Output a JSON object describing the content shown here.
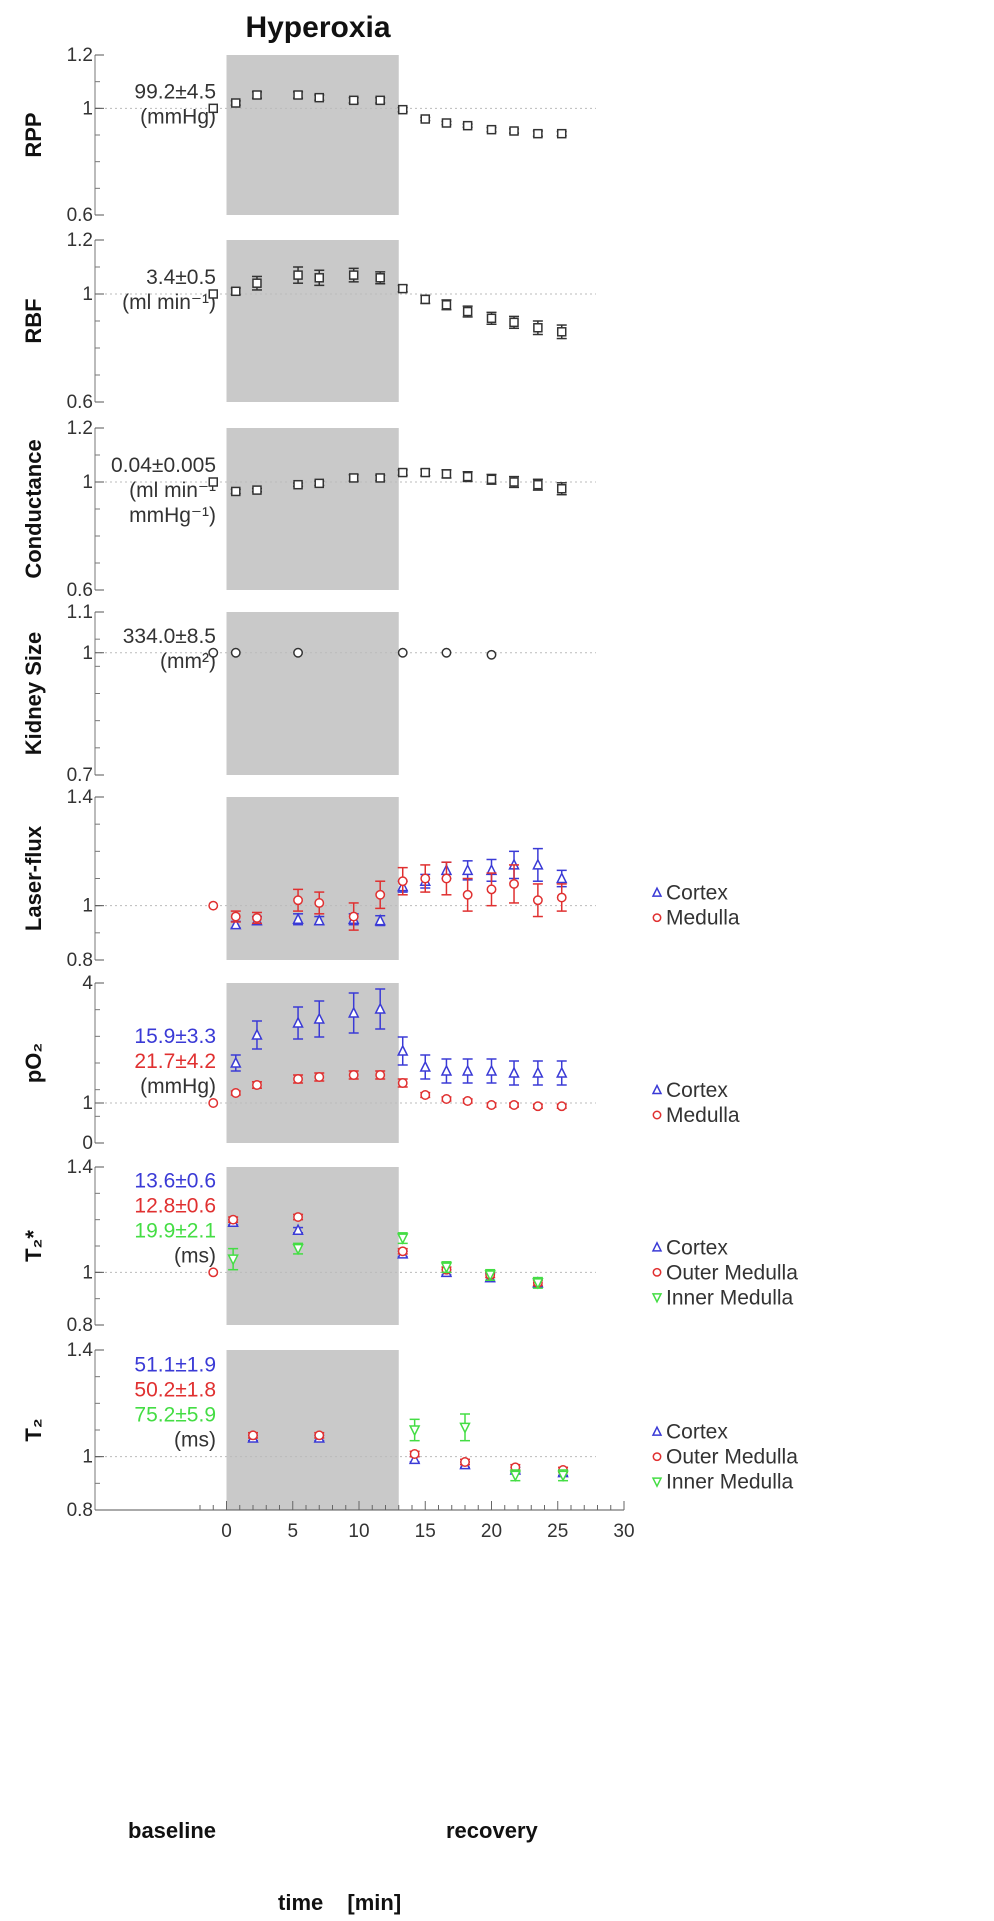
{
  "chart_data": {
    "type": "scatter",
    "title": "Hyperoxia",
    "xlabel": "time",
    "xunit": "[min]",
    "xlim": [
      -2,
      30
    ],
    "xticks": [
      "0",
      "5",
      "10",
      "15",
      "20",
      "25",
      "30"
    ],
    "xtick_values": [
      0,
      5,
      10,
      15,
      20,
      25,
      30
    ],
    "shaded_interval": [
      0,
      13
    ],
    "shade_color": "#c9c9c9",
    "phase_labels": [
      "baseline",
      "recovery"
    ],
    "colors": {
      "black": "#333333",
      "blue": "#3a3ad6",
      "red": "#e03030",
      "green": "#44dd44",
      "reference": "#bbbbbb"
    },
    "panels": [
      {
        "ylabel": "RPP",
        "ylim": [
          0.6,
          1.2
        ],
        "yticks": [
          "1.2",
          "1",
          "0.6"
        ],
        "ytick_values": [
          1.2,
          1,
          0.6
        ],
        "baseline_lines": [
          {
            "text": "99.2±4.5",
            "color": "#333333"
          },
          {
            "text": "(mmHg)",
            "color": "#333333"
          }
        ],
        "legend": [],
        "series": [
          {
            "marker": "square",
            "color": "#333333",
            "x": [
              -1,
              0.7,
              2.3,
              5.4,
              7,
              9.6,
              11.6,
              13.3,
              15,
              16.6,
              18.2,
              20,
              21.7,
              23.5,
              25.3
            ],
            "y": [
              1,
              1.02,
              1.05,
              1.05,
              1.04,
              1.03,
              1.03,
              0.995,
              0.96,
              0.945,
              0.935,
              0.92,
              0.915,
              0.905,
              0.905
            ],
            "err": [
              0,
              0.008,
              0.012,
              0.012,
              0.01,
              0.01,
              0.01,
              0.008,
              0.006,
              0.006,
              0.006,
              0.008,
              0.008,
              0.01,
              0.008
            ]
          }
        ]
      },
      {
        "ylabel": "RBF",
        "ylim": [
          0.6,
          1.2
        ],
        "yticks": [
          "1.2",
          "1",
          "0.6"
        ],
        "ytick_values": [
          1.2,
          1,
          0.6
        ],
        "baseline_lines": [
          {
            "text": "3.4±0.5",
            "color": "#333333"
          },
          {
            "text": "(ml min⁻¹)",
            "color": "#333333"
          }
        ],
        "legend": [],
        "series": [
          {
            "marker": "square",
            "color": "#333333",
            "x": [
              -1,
              0.7,
              2.3,
              5.4,
              7,
              9.6,
              11.6,
              13.3,
              15,
              16.6,
              18.2,
              20,
              21.7,
              23.5,
              25.3
            ],
            "y": [
              1,
              1.01,
              1.04,
              1.07,
              1.06,
              1.07,
              1.06,
              1.02,
              0.98,
              0.96,
              0.935,
              0.91,
              0.895,
              0.875,
              0.86
            ],
            "err": [
              0,
              0.012,
              0.025,
              0.03,
              0.028,
              0.025,
              0.022,
              0.012,
              0.015,
              0.018,
              0.02,
              0.022,
              0.022,
              0.025,
              0.025
            ]
          }
        ]
      },
      {
        "ylabel": "Conductance",
        "ylim": [
          0.6,
          1.2
        ],
        "yticks": [
          "1.2",
          "1",
          "0.6"
        ],
        "ytick_values": [
          1.2,
          1,
          0.6
        ],
        "baseline_lines": [
          {
            "text": "0.04±0.005",
            "color": "#333333"
          },
          {
            "text": "(ml min⁻¹",
            "color": "#333333"
          },
          {
            "text": "mmHg⁻¹)",
            "color": "#333333"
          }
        ],
        "legend": [],
        "series": [
          {
            "marker": "square",
            "color": "#333333",
            "x": [
              -1,
              0.7,
              2.3,
              5.4,
              7,
              9.6,
              11.6,
              13.3,
              15,
              16.6,
              18.2,
              20,
              21.7,
              23.5,
              25.3
            ],
            "y": [
              1,
              0.965,
              0.97,
              0.99,
              0.995,
              1.015,
              1.015,
              1.035,
              1.035,
              1.03,
              1.02,
              1.01,
              1.0,
              0.99,
              0.975
            ],
            "err": [
              0,
              0.008,
              0.006,
              0.006,
              0.008,
              0.012,
              0.01,
              0.01,
              0.012,
              0.015,
              0.018,
              0.018,
              0.02,
              0.02,
              0.022
            ]
          }
        ]
      },
      {
        "ylabel": "Kidney Size",
        "ylim": [
          0.7,
          1.1
        ],
        "yticks": [
          "1.1",
          "1",
          "0.7"
        ],
        "ytick_values": [
          1.1,
          1,
          0.7
        ],
        "baseline_lines": [
          {
            "text": "334.0±8.5",
            "color": "#333333"
          },
          {
            "text": "(mm²)",
            "color": "#333333"
          }
        ],
        "legend": [],
        "series": [
          {
            "marker": "circle",
            "color": "#333333",
            "x": [
              -1,
              0.7,
              5.4,
              13.3,
              16.6,
              20
            ],
            "y": [
              1,
              1,
              1,
              1,
              1,
              0.995
            ],
            "err": [
              0,
              0,
              0,
              0,
              0,
              0
            ]
          }
        ]
      },
      {
        "ylabel": "Laser-flux",
        "ylim": [
          0.8,
          1.4
        ],
        "yticks": [
          "1.4",
          "1",
          "0.8"
        ],
        "ytick_values": [
          1.4,
          1,
          0.8
        ],
        "baseline_lines": [],
        "legend": [
          {
            "marker": "triangle",
            "label": "Cortex",
            "color": "#3a3ad6"
          },
          {
            "marker": "circle",
            "label": "Medulla",
            "color": "#e03030"
          }
        ],
        "series": [
          {
            "name": "Cortex",
            "marker": "triangle",
            "color": "#3a3ad6",
            "x": [
              0.7,
              2.3,
              5.4,
              7,
              9.6,
              11.6,
              13.3,
              15,
              16.6,
              18.2,
              20,
              21.7,
              23.5,
              25.3
            ],
            "y": [
              0.93,
              0.945,
              0.95,
              0.945,
              0.95,
              0.945,
              1.07,
              1.09,
              1.13,
              1.13,
              1.13,
              1.15,
              1.15,
              1.1
            ],
            "err": [
              0.012,
              0.015,
              0.02,
              0.015,
              0.02,
              0.018,
              0.02,
              0.025,
              0.03,
              0.035,
              0.04,
              0.05,
              0.06,
              0.03
            ]
          },
          {
            "name": "Medulla",
            "marker": "circle",
            "color": "#e03030",
            "x": [
              -1,
              0.7,
              2.3,
              5.4,
              7,
              9.6,
              11.6,
              13.3,
              15,
              16.6,
              18.2,
              20,
              21.7,
              23.5,
              25.3
            ],
            "y": [
              1,
              0.96,
              0.955,
              1.02,
              1.01,
              0.96,
              1.04,
              1.09,
              1.1,
              1.1,
              1.04,
              1.06,
              1.08,
              1.02,
              1.03
            ],
            "err": [
              0,
              0.02,
              0.02,
              0.04,
              0.04,
              0.05,
              0.05,
              0.05,
              0.05,
              0.06,
              0.06,
              0.06,
              0.07,
              0.06,
              0.05
            ]
          }
        ]
      },
      {
        "ylabel": "pO₂",
        "ylim": [
          0,
          4
        ],
        "yticks": [
          "4",
          "1",
          "0"
        ],
        "ytick_values": [
          4,
          1,
          0
        ],
        "baseline_lines": [
          {
            "text": "15.9±3.3",
            "color": "#3a3ad6"
          },
          {
            "text": "21.7±4.2",
            "color": "#e03030"
          },
          {
            "text": "(mmHg)",
            "color": "#333333"
          }
        ],
        "legend": [
          {
            "marker": "triangle",
            "label": "Cortex",
            "color": "#3a3ad6"
          },
          {
            "marker": "circle",
            "label": "Medulla",
            "color": "#e03030"
          }
        ],
        "series": [
          {
            "name": "Cortex",
            "marker": "triangle",
            "color": "#3a3ad6",
            "x": [
              0.7,
              2.3,
              5.4,
              7,
              9.6,
              11.6,
              13.3,
              15,
              16.6,
              18.2,
              20,
              21.7,
              23.5,
              25.3
            ],
            "y": [
              2.0,
              2.7,
              3.0,
              3.1,
              3.25,
              3.35,
              2.3,
              1.9,
              1.8,
              1.8,
              1.8,
              1.75,
              1.75,
              1.75
            ],
            "err": [
              0.2,
              0.35,
              0.4,
              0.45,
              0.5,
              0.5,
              0.35,
              0.3,
              0.3,
              0.3,
              0.3,
              0.3,
              0.3,
              0.3
            ]
          },
          {
            "name": "Medulla",
            "marker": "circle",
            "color": "#e03030",
            "x": [
              -1,
              0.7,
              2.3,
              5.4,
              7,
              9.6,
              11.6,
              13.3,
              15,
              16.6,
              18.2,
              20,
              21.7,
              23.5,
              25.3
            ],
            "y": [
              1,
              1.25,
              1.45,
              1.6,
              1.65,
              1.7,
              1.7,
              1.5,
              1.2,
              1.1,
              1.05,
              0.95,
              0.95,
              0.92,
              0.92
            ],
            "err": [
              0,
              0.05,
              0.08,
              0.1,
              0.1,
              0.1,
              0.1,
              0.1,
              0.06,
              0.05,
              0.05,
              0.05,
              0.05,
              0.05,
              0.05
            ]
          }
        ]
      },
      {
        "ylabel": "T₂*",
        "ylim": [
          0.8,
          1.4
        ],
        "yticks": [
          "1.4",
          "1",
          "0.8"
        ],
        "ytick_values": [
          1.4,
          1,
          0.8
        ],
        "baseline_lines": [
          {
            "text": "13.6±0.6",
            "color": "#3a3ad6"
          },
          {
            "text": "12.8±0.6",
            "color": "#e03030"
          },
          {
            "text": "19.9±2.1",
            "color": "#44dd44"
          },
          {
            "text": "(ms)",
            "color": "#333333"
          }
        ],
        "legend": [
          {
            "marker": "triangle",
            "label": "Cortex",
            "color": "#3a3ad6"
          },
          {
            "marker": "circle",
            "label": "Outer Medulla",
            "color": "#e03030"
          },
          {
            "marker": "triangle-down",
            "label": "Inner Medulla",
            "color": "#44dd44"
          }
        ],
        "series": [
          {
            "name": "Cortex",
            "marker": "triangle",
            "color": "#3a3ad6",
            "x": [
              0.5,
              5.4,
              13.3,
              16.6,
              19.9,
              23.5
            ],
            "y": [
              1.19,
              1.16,
              1.07,
              1.0,
              0.98,
              0.96
            ],
            "err": [
              0.01,
              0.01,
              0.01,
              0.01,
              0.015,
              0.015
            ]
          },
          {
            "name": "Outer Medulla",
            "marker": "circle",
            "color": "#e03030",
            "x": [
              -1,
              0.5,
              5.4,
              13.3,
              16.6,
              19.9,
              23.5
            ],
            "y": [
              1,
              1.2,
              1.21,
              1.08,
              1.01,
              0.99,
              0.96
            ],
            "err": [
              0,
              0.01,
              0.01,
              0.01,
              0.01,
              0.01,
              0.01
            ]
          },
          {
            "name": "Inner Medulla",
            "marker": "triangle-down",
            "color": "#44dd44",
            "x": [
              0.5,
              5.4,
              13.3,
              16.6,
              19.9,
              23.5
            ],
            "y": [
              1.05,
              1.09,
              1.13,
              1.02,
              0.99,
              0.96
            ],
            "err": [
              0.04,
              0.02,
              0.02,
              0.02,
              0.02,
              0.02
            ]
          }
        ]
      },
      {
        "ylabel": "T₂",
        "ylim": [
          0.8,
          1.4
        ],
        "yticks": [
          "1.4",
          "1",
          "0.8"
        ],
        "ytick_values": [
          1.4,
          1,
          0.8
        ],
        "baseline_lines": [
          {
            "text": "51.1±1.9",
            "color": "#3a3ad6"
          },
          {
            "text": "50.2±1.8",
            "color": "#e03030"
          },
          {
            "text": "75.2±5.9",
            "color": "#44dd44"
          },
          {
            "text": "(ms)",
            "color": "#333333"
          }
        ],
        "legend": [
          {
            "marker": "triangle",
            "label": "Cortex",
            "color": "#3a3ad6"
          },
          {
            "marker": "circle",
            "label": "Outer Medulla",
            "color": "#e03030"
          },
          {
            "marker": "triangle-down",
            "label": "Inner Medulla",
            "color": "#44dd44"
          }
        ],
        "series": [
          {
            "name": "Cortex",
            "marker": "triangle",
            "color": "#3a3ad6",
            "x": [
              2.0,
              7.0,
              14.2,
              18.0,
              21.8,
              25.4
            ],
            "y": [
              1.07,
              1.07,
              0.99,
              0.97,
              0.95,
              0.94
            ],
            "err": [
              0.01,
              0.01,
              0.01,
              0.01,
              0.01,
              0.01
            ]
          },
          {
            "name": "Outer Medulla",
            "marker": "circle",
            "color": "#e03030",
            "x": [
              2.0,
              7.0,
              14.2,
              18.0,
              21.8,
              25.4
            ],
            "y": [
              1.08,
              1.08,
              1.01,
              0.98,
              0.96,
              0.95
            ],
            "err": [
              0.01,
              0.01,
              0.01,
              0.01,
              0.01,
              0.01
            ]
          },
          {
            "name": "Inner Medulla",
            "marker": "triangle-down",
            "color": "#44dd44",
            "x": [
              14.2,
              18.0,
              21.8,
              25.4
            ],
            "y": [
              1.1,
              1.11,
              0.93,
              0.93
            ],
            "err": [
              0.04,
              0.05,
              0.02,
              0.02
            ]
          }
        ]
      }
    ]
  }
}
